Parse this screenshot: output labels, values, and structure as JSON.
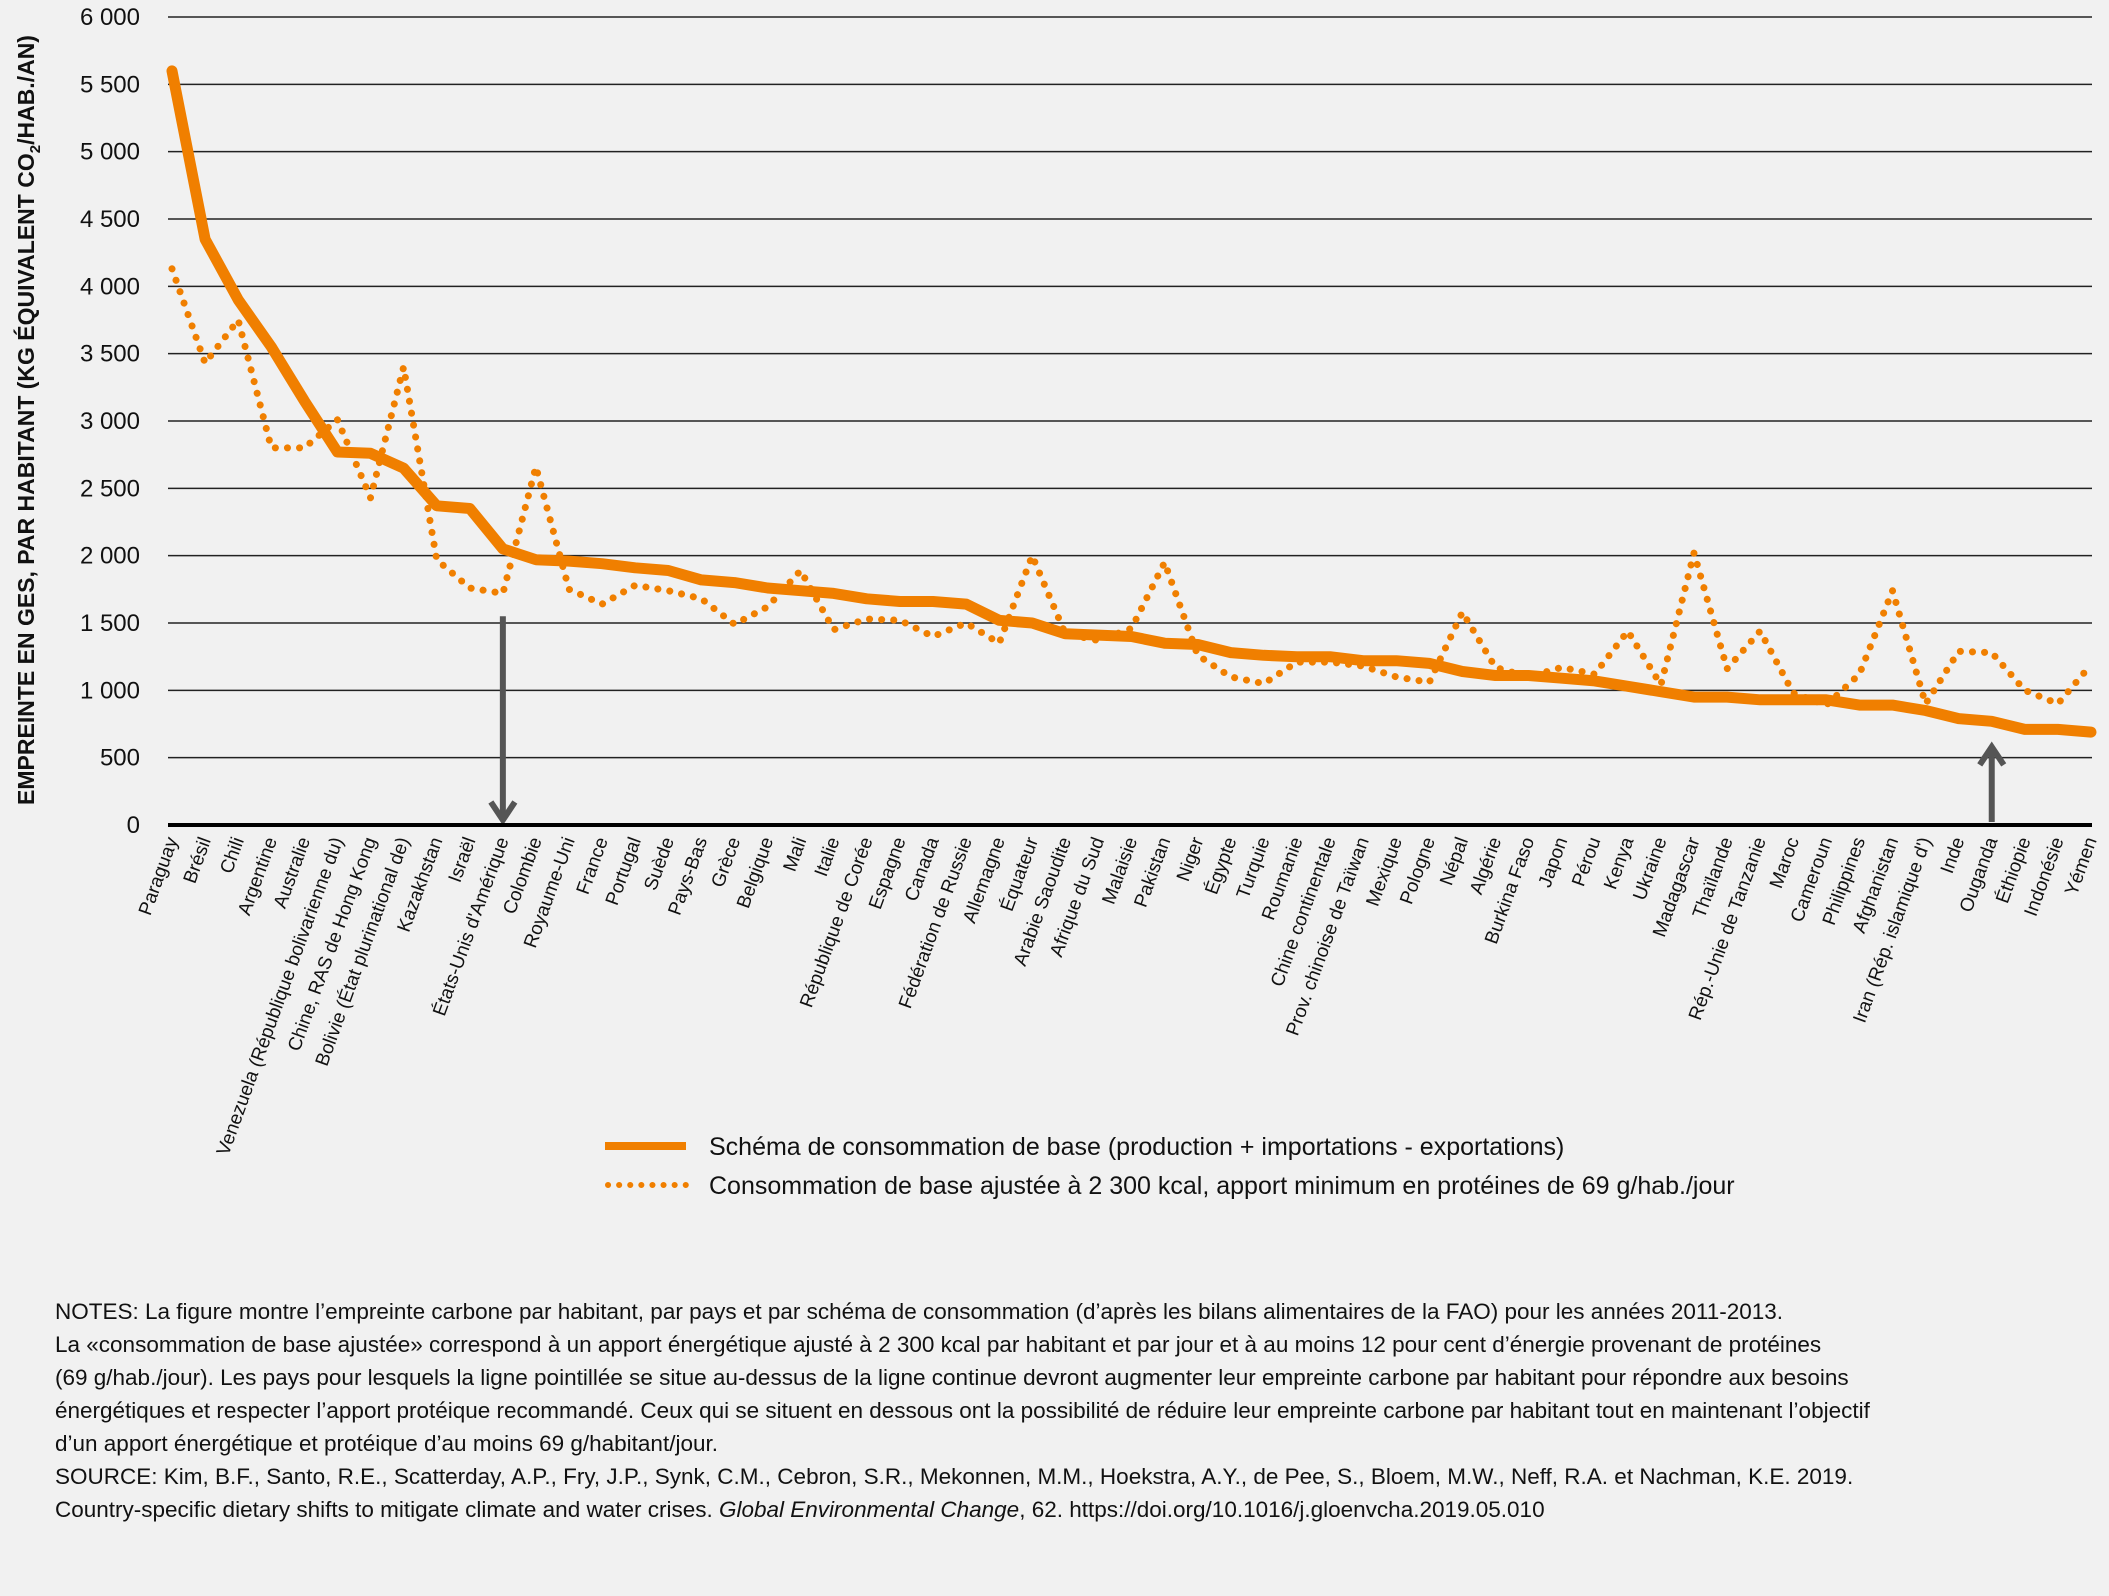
{
  "chart_data": {
    "type": "line",
    "ylabel_parts": [
      "EMPREINTE EN GES, PAR HABITANT (KG ÉQUIVALENT CO",
      "2",
      "/HAB./AN)"
    ],
    "ylim": [
      0,
      6000
    ],
    "yticks": [
      0,
      500,
      1000,
      1500,
      2000,
      2500,
      3000,
      3500,
      4000,
      4500,
      5000,
      5500,
      6000
    ],
    "ytick_labels": [
      "0",
      "500",
      "1 000",
      "1 500",
      "2 000",
      "2 500",
      "3 000",
      "3 500",
      "4 000",
      "4 500",
      "5 000",
      "5 500",
      "6 000"
    ],
    "grid": true,
    "legend_position": "bottom-center",
    "categories": [
      "Paraguay",
      "Brésil",
      "Chili",
      "Argentine",
      "Australie",
      "Venezuela (République bolivarienne du)",
      "Chine, RAS de Hong Kong",
      "Bolivie (État plurinational de)",
      "Kazakhstan",
      "Israël",
      "États-Unis d'Amérique",
      "Colombie",
      "Royaume-Uni",
      "France",
      "Portugal",
      "Suède",
      "Pays-Bas",
      "Grèce",
      "Belgique",
      "Mali",
      "Italie",
      "République de Corée",
      "Espagne",
      "Canada",
      "Fédération de Russie",
      "Allemagne",
      "Équateur",
      "Arabie Saoudite",
      "Afrique du Sud",
      "Malaisie",
      "Pakistan",
      "Niger",
      "Égypte",
      "Turquie",
      "Roumanie",
      "Chine continentale",
      "Prov. chinoise de Taïwan",
      "Mexique",
      "Pologne",
      "Népal",
      "Algérie",
      "Burkina Faso",
      "Japon",
      "Pérou",
      "Kenya",
      "Ukraine",
      "Madagascar",
      "Thaïlande",
      "Rép.-Unie de Tanzanie",
      "Maroc",
      "Cameroun",
      "Philippines",
      "Afghanistan",
      "Iran (Rép. islamique d')",
      "Inde",
      "Ouganda",
      "Éthiopie",
      "Indonésie",
      "Yémen"
    ],
    "series": [
      {
        "name": "Schéma de consommation de base (production + importations - exportations)",
        "style": "solid",
        "color": "#f07f00",
        "values": [
          5600,
          4350,
          3900,
          3550,
          3150,
          2770,
          2760,
          2650,
          2370,
          2350,
          2050,
          1970,
          1960,
          1940,
          1910,
          1890,
          1820,
          1800,
          1760,
          1740,
          1720,
          1680,
          1660,
          1660,
          1640,
          1520,
          1500,
          1420,
          1410,
          1400,
          1350,
          1340,
          1280,
          1260,
          1250,
          1250,
          1220,
          1220,
          1200,
          1140,
          1110,
          1110,
          1090,
          1070,
          1030,
          990,
          950,
          950,
          930,
          930,
          930,
          890,
          890,
          850,
          790,
          770,
          710,
          710,
          690
        ]
      },
      {
        "name": "Consommation de base ajustée à 2 300 kcal, apport minimum en protéines de 69 g/hab./jour",
        "style": "dotted",
        "color": "#f07f00",
        "values": [
          4130,
          3430,
          3750,
          2800,
          2800,
          3010,
          2430,
          3400,
          1970,
          1760,
          1720,
          2660,
          1750,
          1640,
          1780,
          1740,
          1680,
          1490,
          1620,
          1890,
          1450,
          1530,
          1520,
          1400,
          1500,
          1350,
          2000,
          1420,
          1370,
          1460,
          1950,
          1260,
          1100,
          1050,
          1210,
          1210,
          1180,
          1100,
          1060,
          1580,
          1170,
          1100,
          1170,
          1120,
          1440,
          1040,
          2020,
          1160,
          1440,
          980,
          890,
          1120,
          1740,
          900,
          1290,
          1280,
          1000,
          900,
          1190
        ]
      }
    ],
    "annotations": [
      {
        "type": "arrow-down",
        "category": "États-Unis d'Amérique",
        "from": 1550,
        "to": 0,
        "color": "#555555"
      },
      {
        "type": "arrow-up",
        "category": "Ouganda",
        "from": 0,
        "to": 580,
        "color": "#555555"
      }
    ]
  },
  "notes": {
    "lines": [
      "NOTES: La figure montre l’empreinte carbone par habitant, par pays et par schéma de consommation (d’après les bilans alimentaires de la FAO) pour les années 2011-2013.",
      "La «consommation de base ajustée» correspond à un apport énergétique ajusté à 2 300 kcal par habitant et par jour et à au moins 12 pour cent d’énergie provenant de protéines",
      "(69 g/hab./jour). Les pays pour lesquels la ligne pointillée se situe au-dessus de la ligne continue devront augmenter leur empreinte carbone par habitant pour répondre aux besoins",
      "énergétiques et respecter l’apport protéique recommandé. Ceux qui se situent en dessous ont la possibilité de réduire leur empreinte carbone par habitant tout en maintenant l’objectif",
      "d’un apport énergétique et protéique d’au moins 69 g/habitant/jour.",
      "SOURCE: Kim, B.F., Santo, R.E., Scatterday, A.P., Fry, J.P., Synk, C.M., Cebron, S.R., Mekonnen, M.M., Hoekstra, A.Y., de Pee, S., Bloem, M.W., Neff, R.A. et Nachman, K.E. 2019."
    ],
    "source_line2_pre": "Country-specific dietary shifts to mitigate climate and water crises. ",
    "source_line2_journal": "Global Environmental Change",
    "source_line2_post": ", 62. https://doi.org/10.1016/j.gloenvcha.2019.05.010"
  }
}
